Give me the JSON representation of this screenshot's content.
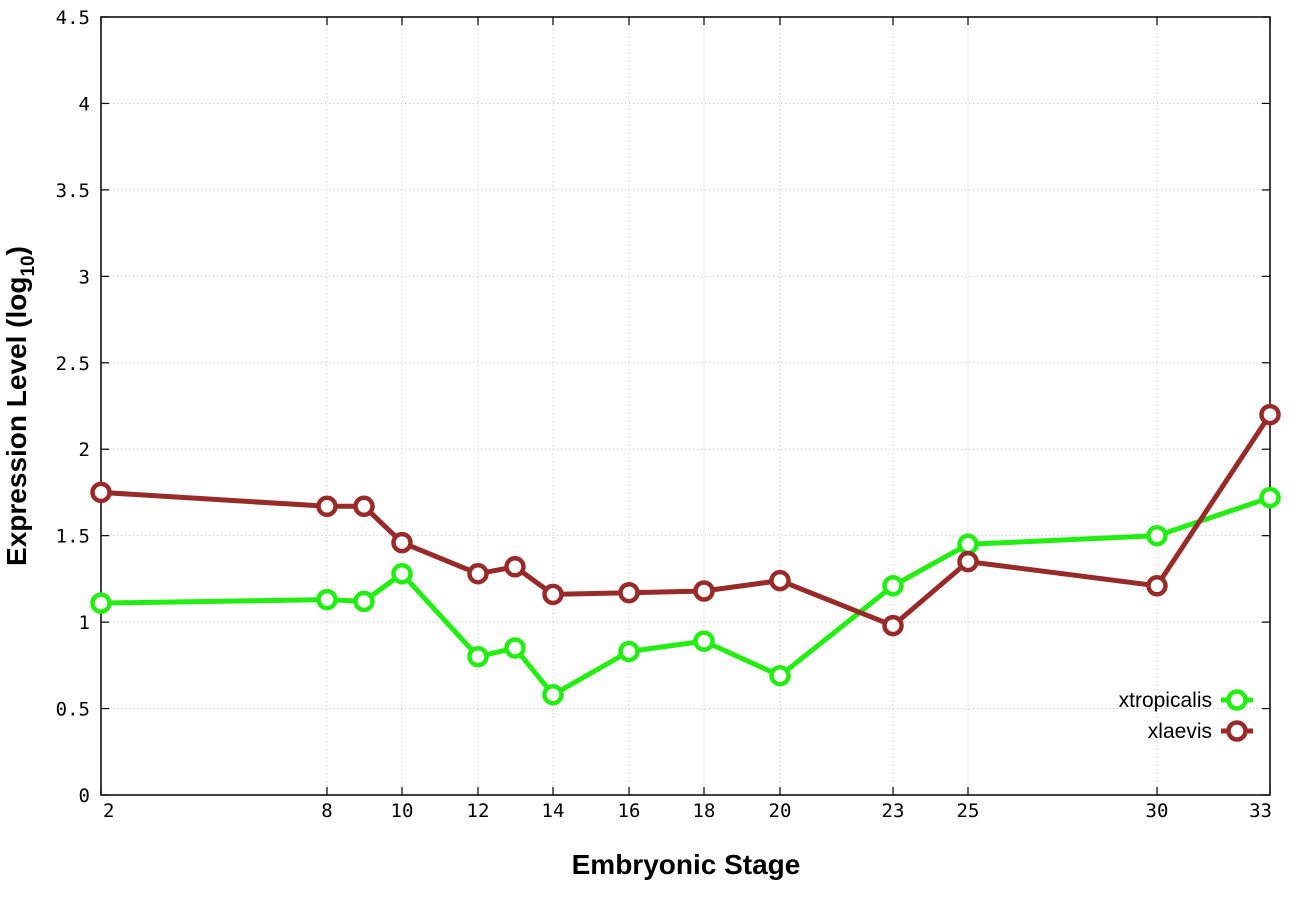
{
  "chart_data": {
    "type": "line",
    "title": "",
    "xlabel": "Embryonic Stage",
    "ylabel_main": "Expression Level (log",
    "ylabel_sub": "10",
    "ylabel_close": ")",
    "x_scale": "categorical-uneven",
    "x": [
      2,
      8,
      9,
      10,
      12,
      13,
      14,
      16,
      18,
      20,
      23,
      25,
      30,
      33
    ],
    "x_tick_labels": [
      "2",
      "8",
      "10",
      "12",
      "14",
      "16",
      "18",
      "20",
      "23",
      "25",
      "30",
      "33"
    ],
    "y_ticks": [
      0,
      0.5,
      1,
      1.5,
      2,
      2.5,
      3,
      3.5,
      4,
      4.5
    ],
    "y_tick_labels": [
      "0",
      "0.5",
      "1",
      "1.5",
      "2",
      "2.5",
      "3",
      "3.5",
      "4",
      "4.5"
    ],
    "ylim": [
      0,
      4.5
    ],
    "grid": true,
    "legend_position": "lower-right",
    "series": [
      {
        "name": "xtropicalis",
        "color": "#22ee11",
        "marker": "open-circle",
        "values": [
          1.11,
          1.13,
          1.12,
          1.28,
          0.8,
          0.85,
          0.58,
          0.83,
          0.89,
          0.69,
          1.21,
          1.45,
          1.5,
          1.72
        ]
      },
      {
        "name": "xlaevis",
        "color": "#992a2a",
        "marker": "open-circle",
        "values": [
          1.75,
          1.67,
          1.67,
          1.46,
          1.28,
          1.32,
          1.16,
          1.17,
          1.18,
          1.24,
          0.98,
          1.35,
          1.21,
          2.2
        ]
      }
    ]
  }
}
